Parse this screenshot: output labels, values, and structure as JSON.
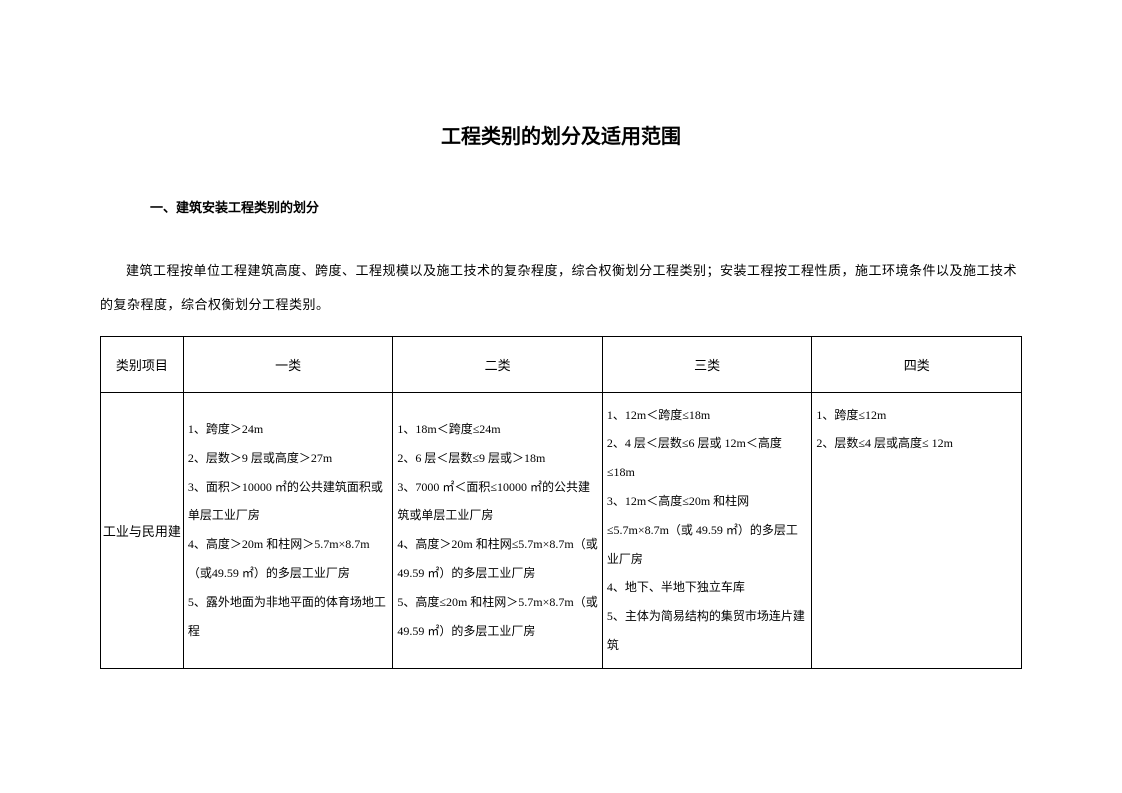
{
  "title": "工程类别的划分及适用范围",
  "section_heading": "一、建筑安装工程类别的划分",
  "paragraph": "建筑工程按单位工程建筑高度、跨度、工程规模以及施工技术的复杂程度，综合权衡划分工程类别；安装工程按工程性质，施工环境条件以及施工技术的复杂程度，综合权衡划分工程类别。",
  "table": {
    "headers": [
      "类别项目",
      "一类",
      "二类",
      "三类",
      "四类"
    ],
    "row_label": "工业与民用建",
    "cells": {
      "cat1": [
        "1、跨度＞24m",
        "2、层数＞9 层或高度＞27m",
        "3、面积＞10000 ㎡的公共建筑面积或单层工业厂房",
        "4、高度＞20m 和柱网＞5.7m×8.7m（或49.59 ㎡）的多层工业厂房",
        "5、露外地面为非地平面的体育场地工程"
      ],
      "cat2": [
        "1、18m＜跨度≤24m",
        "2、6 层＜层数≤9 层或＞18m",
        "3、7000 ㎡＜面积≤10000 ㎡的公共建筑或单层工业厂房",
        "4、高度＞20m 和柱网≤5.7m×8.7m（或49.59 ㎡）的多层工业厂房",
        "5、高度≤20m 和柱网＞5.7m×8.7m（或49.59 ㎡）的多层工业厂房"
      ],
      "cat3": [
        "1、12m＜跨度≤18m",
        "2、4 层＜层数≤6 层或 12m＜高度≤18m",
        "3、12m＜高度≤20m 和柱网　　　　≤5.7m×8.7m（或 49.59 ㎡）的多层工业厂房",
        "4、地下、半地下独立车库",
        "5、主体为简易结构的集贸市场连片建筑"
      ],
      "cat4": [
        "1、跨度≤12m",
        "2、层数≤4 层或高度≤ 12m"
      ]
    }
  },
  "style": {
    "background_color": "#ffffff",
    "text_color": "#000000",
    "border_color": "#000000",
    "title_fontsize": 20,
    "heading_fontsize": 13,
    "body_fontsize": 13,
    "cell_fontsize": 12,
    "font_family_heading": "SimHei",
    "font_family_body": "SimSun"
  }
}
